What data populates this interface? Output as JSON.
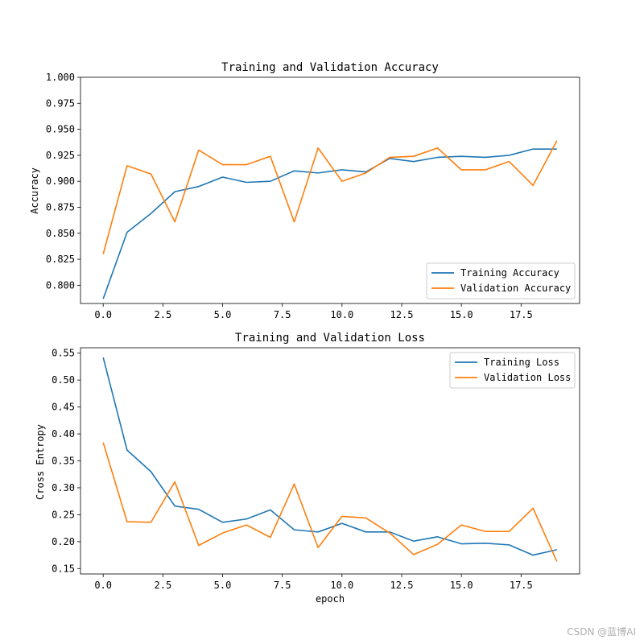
{
  "chart_data": [
    {
      "type": "line",
      "title": "Training and Validation Accuracy",
      "xlabel": "",
      "ylabel": "Accuracy",
      "xlim": [
        -0.95,
        19.95
      ],
      "ylim": [
        0.7825,
        1.0
      ],
      "xticks": [
        0,
        2.5,
        5,
        7.5,
        10,
        12.5,
        15,
        17.5
      ],
      "xtick_labels": [
        "0.0",
        "2.5",
        "5.0",
        "7.5",
        "10.0",
        "12.5",
        "15.0",
        "17.5"
      ],
      "yticks": [
        0.8,
        0.825,
        0.85,
        0.875,
        0.9,
        0.925,
        0.95,
        0.975,
        1.0
      ],
      "ytick_labels": [
        "0.800",
        "0.825",
        "0.850",
        "0.875",
        "0.900",
        "0.925",
        "0.950",
        "0.975",
        "1.000"
      ],
      "legend_position": "lower right",
      "x": [
        0,
        1,
        2,
        3,
        4,
        5,
        6,
        7,
        8,
        9,
        10,
        11,
        12,
        13,
        14,
        15,
        16,
        17,
        18,
        19
      ],
      "series": [
        {
          "name": "Training Accuracy",
          "color": "#1f77b4",
          "values": [
            0.787,
            0.851,
            0.869,
            0.89,
            0.895,
            0.904,
            0.899,
            0.9,
            0.91,
            0.908,
            0.911,
            0.909,
            0.922,
            0.919,
            0.923,
            0.924,
            0.923,
            0.925,
            0.931,
            0.931
          ]
        },
        {
          "name": "Validation Accuracy",
          "color": "#ff7f0e",
          "values": [
            0.83,
            0.915,
            0.907,
            0.861,
            0.93,
            0.916,
            0.916,
            0.924,
            0.861,
            0.932,
            0.9,
            0.908,
            0.923,
            0.924,
            0.932,
            0.911,
            0.911,
            0.919,
            0.896,
            0.939
          ]
        }
      ]
    },
    {
      "type": "line",
      "title": "Training and Validation Loss",
      "xlabel": "epoch",
      "ylabel": "Cross Entropy",
      "xlim": [
        -0.95,
        19.95
      ],
      "ylim": [
        0.14,
        0.56
      ],
      "xticks": [
        0,
        2.5,
        5,
        7.5,
        10,
        12.5,
        15,
        17.5
      ],
      "xtick_labels": [
        "0.0",
        "2.5",
        "5.0",
        "7.5",
        "10.0",
        "12.5",
        "15.0",
        "17.5"
      ],
      "yticks": [
        0.15,
        0.2,
        0.25,
        0.3,
        0.35,
        0.4,
        0.45,
        0.5,
        0.55
      ],
      "ytick_labels": [
        "0.15",
        "0.20",
        "0.25",
        "0.30",
        "0.35",
        "0.40",
        "0.45",
        "0.50",
        "0.55"
      ],
      "legend_position": "upper right",
      "x": [
        0,
        1,
        2,
        3,
        4,
        5,
        6,
        7,
        8,
        9,
        10,
        11,
        12,
        13,
        14,
        15,
        16,
        17,
        18,
        19
      ],
      "series": [
        {
          "name": "Training Loss",
          "color": "#1f77b4",
          "values": [
            0.542,
            0.37,
            0.33,
            0.266,
            0.26,
            0.236,
            0.242,
            0.259,
            0.222,
            0.218,
            0.234,
            0.218,
            0.218,
            0.201,
            0.209,
            0.196,
            0.197,
            0.194,
            0.175,
            0.185
          ]
        },
        {
          "name": "Validation Loss",
          "color": "#ff7f0e",
          "values": [
            0.384,
            0.237,
            0.236,
            0.311,
            0.193,
            0.216,
            0.231,
            0.208,
            0.307,
            0.189,
            0.247,
            0.244,
            0.216,
            0.176,
            0.195,
            0.231,
            0.219,
            0.219,
            0.262,
            0.163
          ]
        }
      ]
    }
  ],
  "watermark": "CSDN @蓝博AI"
}
